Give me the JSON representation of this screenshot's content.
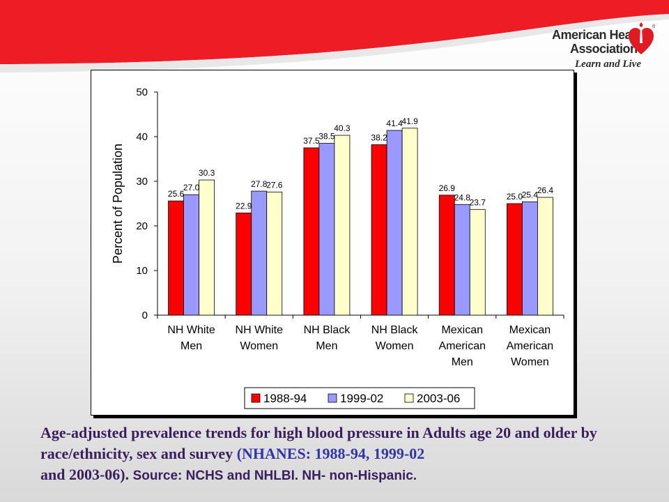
{
  "logo": {
    "line1": "American Heart",
    "line2": "Association",
    "tagline": "Learn and Live",
    "registered": "®"
  },
  "colors": {
    "banner_red": "#ee1c25",
    "series": [
      "#ff0000",
      "#9999ff",
      "#ffffcc"
    ]
  },
  "chart_data": {
    "type": "bar",
    "ylabel": "Percent of Population",
    "xlabel": "",
    "ylim": [
      0,
      50
    ],
    "yticks": [
      0,
      10,
      20,
      30,
      40,
      50
    ],
    "grid": false,
    "legend_position": "bottom",
    "categories": [
      [
        "NH White",
        "Men"
      ],
      [
        "NH White",
        "Women"
      ],
      [
        "NH Black",
        "Men"
      ],
      [
        "NH Black",
        "Women"
      ],
      [
        "Mexican",
        "American",
        "Men"
      ],
      [
        "Mexican",
        "American",
        "Women"
      ]
    ],
    "series": [
      {
        "name": "1988-94",
        "color": "#ff0000",
        "values": [
          25.6,
          22.9,
          37.5,
          38.2,
          26.9,
          25.0
        ],
        "labels": [
          "25.6",
          "22.9",
          "37.5",
          "38.2",
          "26.9",
          "25.0"
        ]
      },
      {
        "name": "1999-02",
        "color": "#9999ff",
        "values": [
          27.0,
          27.8,
          38.5,
          41.4,
          24.8,
          25.4
        ],
        "labels": [
          "27.0",
          "27.8",
          "38.5",
          "41.4",
          "24.8",
          "25.4"
        ]
      },
      {
        "name": "2003-06",
        "color": "#ffffcc",
        "values": [
          30.3,
          27.6,
          40.3,
          41.9,
          23.7,
          26.4
        ],
        "labels": [
          "30.3",
          "27.6",
          "40.3",
          "41.9",
          "23.7",
          "26.4"
        ]
      }
    ]
  },
  "caption": {
    "part1": "Age-adjusted prevalence trends for high blood pressure in Adults age 20 and older by race/ethnicity, sex and survey ",
    "part2": "(NHANES: 1988-94, 1999-02",
    "part3": "and 2003-06). ",
    "part4": "Source: NCHS and NHLBI.  NH- non-Hispanic."
  }
}
